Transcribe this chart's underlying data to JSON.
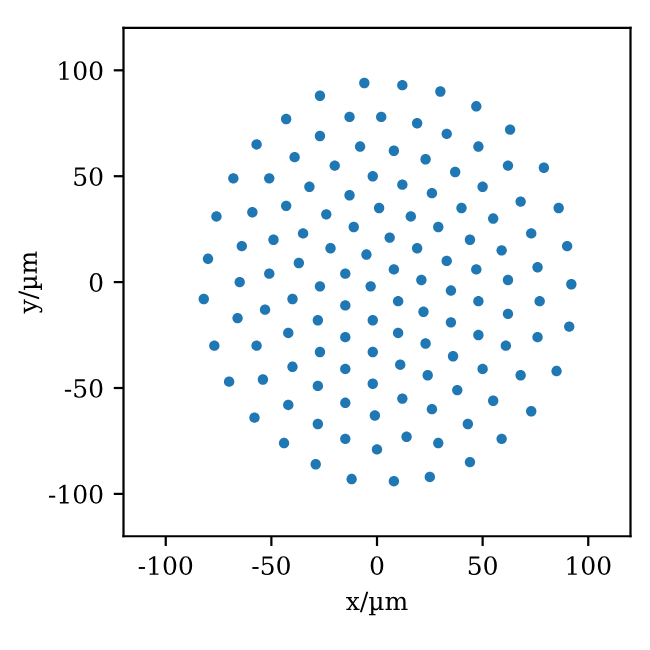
{
  "chart_data": {
    "type": "scatter",
    "xlabel": "x/µm",
    "ylabel": "y/µm",
    "xlim": [
      -120,
      120
    ],
    "ylim": [
      -120,
      120
    ],
    "xticks": [
      -100,
      -50,
      0,
      50,
      100
    ],
    "yticks": [
      -100,
      -50,
      0,
      50,
      100
    ],
    "grid": false,
    "marker": "circle",
    "series": [
      {
        "color": "#1f77b4",
        "x": [
          -27,
          -6,
          -43,
          -13,
          2,
          -57,
          -27,
          -39,
          -8,
          -20,
          -2,
          -68,
          -51,
          -32,
          -13,
          -76,
          -59,
          -43,
          -24,
          1,
          -11,
          -80,
          -64,
          -49,
          -35,
          -22,
          -5,
          -65,
          -51,
          -37,
          -27,
          -15,
          -3,
          12,
          30,
          47,
          19,
          33,
          63,
          8,
          23,
          48,
          37,
          62,
          79,
          12,
          26,
          50,
          68,
          86,
          16,
          29,
          40,
          55,
          73,
          6,
          19,
          33,
          44,
          59,
          90,
          8,
          21,
          47,
          76,
          62,
          92,
          35,
          -82,
          -40,
          -66,
          -53,
          -15,
          -28,
          -2,
          -77,
          -57,
          -42,
          -15,
          -27,
          -2,
          -70,
          -54,
          -40,
          -15,
          -28,
          -2,
          -58,
          -42,
          -15,
          -28,
          -1,
          -44,
          -15,
          0,
          -29,
          -12,
          10,
          48,
          77,
          22,
          35,
          62,
          91,
          10,
          48,
          76,
          23,
          36,
          61,
          11,
          50,
          68,
          85,
          24,
          38,
          12,
          55,
          73,
          26,
          43,
          14,
          59,
          29,
          44,
          8,
          25
        ],
        "values": [
          88,
          94,
          77,
          78,
          78,
          65,
          69,
          59,
          64,
          55,
          50,
          49,
          49,
          45,
          41,
          31,
          33,
          36,
          32,
          35,
          26,
          11,
          17,
          20,
          23,
          16,
          13,
          0,
          4,
          9,
          -2,
          4,
          -2,
          93,
          90,
          83,
          75,
          70,
          72,
          62,
          58,
          64,
          52,
          55,
          54,
          46,
          42,
          45,
          38,
          35,
          31,
          26,
          35,
          30,
          23,
          21,
          16,
          10,
          20,
          15,
          17,
          6,
          1,
          6,
          7,
          1,
          -1,
          -4,
          -8,
          -8,
          -17,
          -13,
          -11,
          -18,
          -18,
          -30,
          -30,
          -24,
          -26,
          -33,
          -33,
          -47,
          -46,
          -40,
          -41,
          -49,
          -48,
          -64,
          -58,
          -57,
          -67,
          -63,
          -76,
          -74,
          -79,
          -86,
          -93,
          -9,
          -9,
          -9,
          -14,
          -19,
          -15,
          -21,
          -24,
          -25,
          -26,
          -29,
          -35,
          -30,
          -39,
          -41,
          -44,
          -42,
          -44,
          -51,
          -55,
          -56,
          -61,
          -60,
          -67,
          -73,
          -74,
          -76,
          -85,
          -94,
          -92
        ]
      }
    ]
  }
}
